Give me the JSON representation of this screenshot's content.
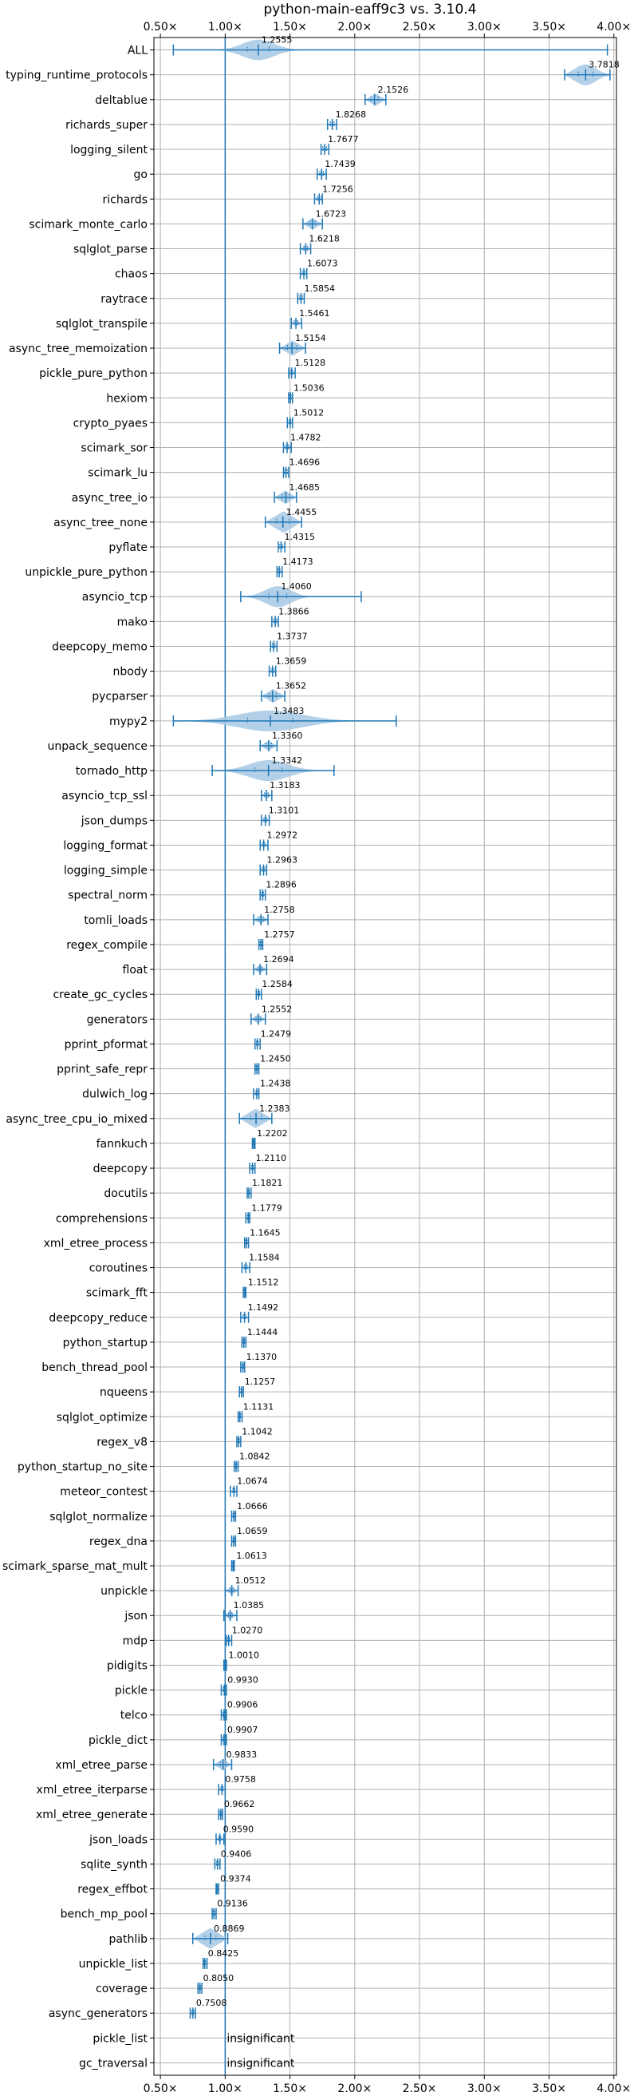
{
  "chart_data": {
    "type": "violin",
    "title": "python-main-eaff9c3 vs. 3.10.4",
    "orientation": "horizontal",
    "xlim": [
      0.45,
      4.02
    ],
    "x_ticks": [
      {
        "value": 0.5,
        "label": "0.50×"
      },
      {
        "value": 1.0,
        "label": "1.00×"
      },
      {
        "value": 1.5,
        "label": "1.50×"
      },
      {
        "value": 2.0,
        "label": "2.00×"
      },
      {
        "value": 2.5,
        "label": "2.50×"
      },
      {
        "value": 3.0,
        "label": "3.00×"
      },
      {
        "value": 3.5,
        "label": "3.50×"
      },
      {
        "value": 4.0,
        "label": "4.00×"
      }
    ],
    "x_ticks_top_and_bottom": true,
    "reference_line": 1.0,
    "grid": true,
    "colors": {
      "violin": "#a6c8e4",
      "line": "#1f77b4",
      "grid": "#b0b0b0"
    },
    "benchmarks": [
      {
        "name": "ALL",
        "value": 1.2555,
        "label": "1.2555",
        "min": 0.6,
        "max": 3.95,
        "spread": 0.12
      },
      {
        "name": "typing_runtime_protocols",
        "value": 3.7818,
        "label": "3.7818",
        "min": 3.62,
        "max": 3.97,
        "spread": 0.08
      },
      {
        "name": "deltablue",
        "value": 2.1526,
        "label": "2.1526",
        "min": 2.08,
        "max": 2.24,
        "spread": 0.04
      },
      {
        "name": "richards_super",
        "value": 1.8268,
        "label": "1.8268",
        "min": 1.79,
        "max": 1.86,
        "spread": 0.02
      },
      {
        "name": "logging_silent",
        "value": 1.7677,
        "label": "1.7677",
        "min": 1.74,
        "max": 1.8,
        "spread": 0.02
      },
      {
        "name": "go",
        "value": 1.7439,
        "label": "1.7439",
        "min": 1.71,
        "max": 1.78,
        "spread": 0.02
      },
      {
        "name": "richards",
        "value": 1.7256,
        "label": "1.7256",
        "min": 1.69,
        "max": 1.75,
        "spread": 0.02
      },
      {
        "name": "scimark_monte_carlo",
        "value": 1.6723,
        "label": "1.6723",
        "min": 1.6,
        "max": 1.75,
        "spread": 0.03
      },
      {
        "name": "sqlglot_parse",
        "value": 1.6218,
        "label": "1.6218",
        "min": 1.58,
        "max": 1.66,
        "spread": 0.02
      },
      {
        "name": "chaos",
        "value": 1.6073,
        "label": "1.6073",
        "min": 1.58,
        "max": 1.63,
        "spread": 0.015
      },
      {
        "name": "raytrace",
        "value": 1.5854,
        "label": "1.5854",
        "min": 1.56,
        "max": 1.61,
        "spread": 0.015
      },
      {
        "name": "sqlglot_transpile",
        "value": 1.5461,
        "label": "1.5461",
        "min": 1.51,
        "max": 1.59,
        "spread": 0.02
      },
      {
        "name": "async_tree_memoization",
        "value": 1.5154,
        "label": "1.5154",
        "min": 1.42,
        "max": 1.62,
        "spread": 0.05
      },
      {
        "name": "pickle_pure_python",
        "value": 1.5128,
        "label": "1.5128",
        "min": 1.49,
        "max": 1.54,
        "spread": 0.015
      },
      {
        "name": "hexiom",
        "value": 1.5036,
        "label": "1.5036",
        "min": 1.49,
        "max": 1.52,
        "spread": 0.01
      },
      {
        "name": "crypto_pyaes",
        "value": 1.5012,
        "label": "1.5012",
        "min": 1.48,
        "max": 1.52,
        "spread": 0.01
      },
      {
        "name": "scimark_sor",
        "value": 1.4782,
        "label": "1.4782",
        "min": 1.45,
        "max": 1.51,
        "spread": 0.015
      },
      {
        "name": "scimark_lu",
        "value": 1.4696,
        "label": "1.4696",
        "min": 1.45,
        "max": 1.49,
        "spread": 0.015
      },
      {
        "name": "async_tree_io",
        "value": 1.4685,
        "label": "1.4685",
        "min": 1.38,
        "max": 1.55,
        "spread": 0.04
      },
      {
        "name": "async_tree_none",
        "value": 1.4455,
        "label": "1.4455",
        "min": 1.31,
        "max": 1.59,
        "spread": 0.07
      },
      {
        "name": "pyflate",
        "value": 1.4315,
        "label": "1.4315",
        "min": 1.41,
        "max": 1.46,
        "spread": 0.015
      },
      {
        "name": "unpickle_pure_python",
        "value": 1.4173,
        "label": "1.4173",
        "min": 1.4,
        "max": 1.44,
        "spread": 0.01
      },
      {
        "name": "asyncio_tcp",
        "value": 1.406,
        "label": "1.4060",
        "min": 1.12,
        "max": 2.05,
        "spread": 0.1
      },
      {
        "name": "mako",
        "value": 1.3866,
        "label": "1.3866",
        "min": 1.36,
        "max": 1.41,
        "spread": 0.015
      },
      {
        "name": "deepcopy_memo",
        "value": 1.3737,
        "label": "1.3737",
        "min": 1.35,
        "max": 1.4,
        "spread": 0.015
      },
      {
        "name": "nbody",
        "value": 1.3659,
        "label": "1.3659",
        "min": 1.34,
        "max": 1.39,
        "spread": 0.015
      },
      {
        "name": "pycparser",
        "value": 1.3652,
        "label": "1.3652",
        "min": 1.28,
        "max": 1.46,
        "spread": 0.04
      },
      {
        "name": "mypy2",
        "value": 1.3483,
        "label": "1.3483",
        "min": 0.6,
        "max": 2.32,
        "spread": 0.25
      },
      {
        "name": "unpack_sequence",
        "value": 1.336,
        "label": "1.3360",
        "min": 1.27,
        "max": 1.4,
        "spread": 0.03
      },
      {
        "name": "tornado_http",
        "value": 1.3342,
        "label": "1.3342",
        "min": 0.9,
        "max": 1.84,
        "spread": 0.15
      },
      {
        "name": "asyncio_tcp_ssl",
        "value": 1.3183,
        "label": "1.3183",
        "min": 1.28,
        "max": 1.36,
        "spread": 0.02
      },
      {
        "name": "json_dumps",
        "value": 1.3101,
        "label": "1.3101",
        "min": 1.28,
        "max": 1.34,
        "spread": 0.015
      },
      {
        "name": "logging_format",
        "value": 1.2972,
        "label": "1.2972",
        "min": 1.27,
        "max": 1.33,
        "spread": 0.015
      },
      {
        "name": "logging_simple",
        "value": 1.2963,
        "label": "1.2963",
        "min": 1.27,
        "max": 1.32,
        "spread": 0.015
      },
      {
        "name": "spectral_norm",
        "value": 1.2896,
        "label": "1.2896",
        "min": 1.27,
        "max": 1.31,
        "spread": 0.01
      },
      {
        "name": "tomli_loads",
        "value": 1.2758,
        "label": "1.2758",
        "min": 1.22,
        "max": 1.33,
        "spread": 0.025
      },
      {
        "name": "regex_compile",
        "value": 1.2757,
        "label": "1.2757",
        "min": 1.26,
        "max": 1.29,
        "spread": 0.01
      },
      {
        "name": "float",
        "value": 1.2694,
        "label": "1.2694",
        "min": 1.22,
        "max": 1.32,
        "spread": 0.02
      },
      {
        "name": "create_gc_cycles",
        "value": 1.2584,
        "label": "1.2584",
        "min": 1.24,
        "max": 1.28,
        "spread": 0.01
      },
      {
        "name": "generators",
        "value": 1.2552,
        "label": "1.2552",
        "min": 1.2,
        "max": 1.31,
        "spread": 0.025
      },
      {
        "name": "pprint_pformat",
        "value": 1.2479,
        "label": "1.2479",
        "min": 1.23,
        "max": 1.27,
        "spread": 0.01
      },
      {
        "name": "pprint_safe_repr",
        "value": 1.245,
        "label": "1.2450",
        "min": 1.23,
        "max": 1.26,
        "spread": 0.01
      },
      {
        "name": "dulwich_log",
        "value": 1.2438,
        "label": "1.2438",
        "min": 1.22,
        "max": 1.26,
        "spread": 0.01
      },
      {
        "name": "async_tree_cpu_io_mixed",
        "value": 1.2383,
        "label": "1.2383",
        "min": 1.11,
        "max": 1.36,
        "spread": 0.06
      },
      {
        "name": "fannkuch",
        "value": 1.2202,
        "label": "1.2202",
        "min": 1.21,
        "max": 1.23,
        "spread": 0.008
      },
      {
        "name": "deepcopy",
        "value": 1.211,
        "label": "1.2110",
        "min": 1.19,
        "max": 1.23,
        "spread": 0.01
      },
      {
        "name": "docutils",
        "value": 1.1821,
        "label": "1.1821",
        "min": 1.17,
        "max": 1.2,
        "spread": 0.008
      },
      {
        "name": "comprehensions",
        "value": 1.1779,
        "label": "1.1779",
        "min": 1.16,
        "max": 1.19,
        "spread": 0.008
      },
      {
        "name": "xml_etree_process",
        "value": 1.1645,
        "label": "1.1645",
        "min": 1.15,
        "max": 1.18,
        "spread": 0.008
      },
      {
        "name": "coroutines",
        "value": 1.1584,
        "label": "1.1584",
        "min": 1.13,
        "max": 1.19,
        "spread": 0.015
      },
      {
        "name": "scimark_fft",
        "value": 1.1512,
        "label": "1.1512",
        "min": 1.14,
        "max": 1.16,
        "spread": 0.006
      },
      {
        "name": "deepcopy_reduce",
        "value": 1.1492,
        "label": "1.1492",
        "min": 1.12,
        "max": 1.18,
        "spread": 0.015
      },
      {
        "name": "python_startup",
        "value": 1.1444,
        "label": "1.1444",
        "min": 1.13,
        "max": 1.16,
        "spread": 0.008
      },
      {
        "name": "bench_thread_pool",
        "value": 1.137,
        "label": "1.1370",
        "min": 1.12,
        "max": 1.15,
        "spread": 0.008
      },
      {
        "name": "nqueens",
        "value": 1.1257,
        "label": "1.1257",
        "min": 1.11,
        "max": 1.14,
        "spread": 0.008
      },
      {
        "name": "sqlglot_optimize",
        "value": 1.1131,
        "label": "1.1131",
        "min": 1.1,
        "max": 1.13,
        "spread": 0.008
      },
      {
        "name": "regex_v8",
        "value": 1.1042,
        "label": "1.1042",
        "min": 1.09,
        "max": 1.12,
        "spread": 0.008
      },
      {
        "name": "python_startup_no_site",
        "value": 1.0842,
        "label": "1.0842",
        "min": 1.07,
        "max": 1.1,
        "spread": 0.008
      },
      {
        "name": "meteor_contest",
        "value": 1.0674,
        "label": "1.0674",
        "min": 1.04,
        "max": 1.09,
        "spread": 0.012
      },
      {
        "name": "sqlglot_normalize",
        "value": 1.0666,
        "label": "1.0666",
        "min": 1.05,
        "max": 1.08,
        "spread": 0.008
      },
      {
        "name": "regex_dna",
        "value": 1.0659,
        "label": "1.0659",
        "min": 1.05,
        "max": 1.08,
        "spread": 0.008
      },
      {
        "name": "scimark_sparse_mat_mult",
        "value": 1.0613,
        "label": "1.0613",
        "min": 1.05,
        "max": 1.07,
        "spread": 0.006
      },
      {
        "name": "unpickle",
        "value": 1.0512,
        "label": "1.0512",
        "min": 1.0,
        "max": 1.1,
        "spread": 0.02
      },
      {
        "name": "json",
        "value": 1.0385,
        "label": "1.0385",
        "min": 0.99,
        "max": 1.09,
        "spread": 0.02
      },
      {
        "name": "mdp",
        "value": 1.027,
        "label": "1.0270",
        "min": 1.01,
        "max": 1.05,
        "spread": 0.01
      },
      {
        "name": "pidigits",
        "value": 1.001,
        "label": "1.0010",
        "min": 0.99,
        "max": 1.01,
        "spread": 0.004
      },
      {
        "name": "pickle",
        "value": 0.993,
        "label": "0.9930",
        "min": 0.97,
        "max": 1.01,
        "spread": 0.01
      },
      {
        "name": "telco",
        "value": 0.9906,
        "label": "0.9906",
        "min": 0.97,
        "max": 1.01,
        "spread": 0.01
      },
      {
        "name": "pickle_dict",
        "value": 0.9907,
        "label": "0.9907",
        "min": 0.97,
        "max": 1.01,
        "spread": 0.01
      },
      {
        "name": "xml_etree_parse",
        "value": 0.9833,
        "label": "0.9833",
        "min": 0.91,
        "max": 1.05,
        "spread": 0.03
      },
      {
        "name": "xml_etree_iterparse",
        "value": 0.9758,
        "label": "0.9758",
        "min": 0.95,
        "max": 1.0,
        "spread": 0.012
      },
      {
        "name": "xml_etree_generate",
        "value": 0.9662,
        "label": "0.9662",
        "min": 0.95,
        "max": 0.98,
        "spread": 0.008
      },
      {
        "name": "json_loads",
        "value": 0.959,
        "label": "0.9590",
        "min": 0.93,
        "max": 0.99,
        "spread": 0.012
      },
      {
        "name": "sqlite_synth",
        "value": 0.9406,
        "label": "0.9406",
        "min": 0.92,
        "max": 0.96,
        "spread": 0.01
      },
      {
        "name": "regex_effbot",
        "value": 0.9374,
        "label": "0.9374",
        "min": 0.93,
        "max": 0.95,
        "spread": 0.005
      },
      {
        "name": "bench_mp_pool",
        "value": 0.9136,
        "label": "0.9136",
        "min": 0.9,
        "max": 0.93,
        "spread": 0.008
      },
      {
        "name": "pathlib",
        "value": 0.8869,
        "label": "0.8869",
        "min": 0.75,
        "max": 1.02,
        "spread": 0.06
      },
      {
        "name": "unpickle_list",
        "value": 0.8425,
        "label": "0.8425",
        "min": 0.83,
        "max": 0.86,
        "spread": 0.008
      },
      {
        "name": "coverage",
        "value": 0.805,
        "label": "0.8050",
        "min": 0.79,
        "max": 0.82,
        "spread": 0.008
      },
      {
        "name": "async_generators",
        "value": 0.7508,
        "label": "0.7508",
        "min": 0.73,
        "max": 0.77,
        "spread": 0.01
      },
      {
        "name": "pickle_list",
        "value": null,
        "label": "insignificant"
      },
      {
        "name": "gc_traversal",
        "value": null,
        "label": "insignificant"
      }
    ]
  }
}
